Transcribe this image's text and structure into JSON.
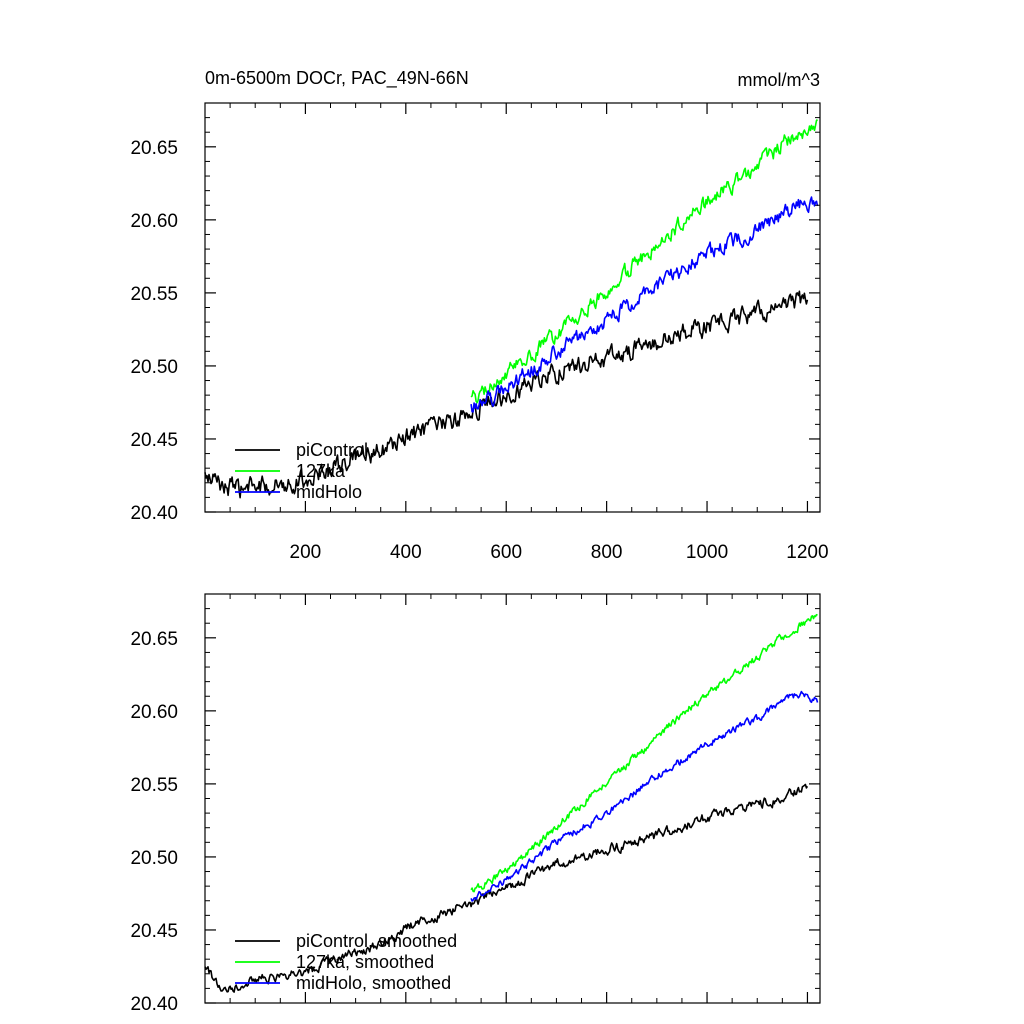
{
  "chart_data": [
    {
      "type": "line",
      "title": "0m-6500m DOCr, PAC_49N-66N",
      "units": "mmol/m^3",
      "xlim": [
        0,
        1225
      ],
      "ylim": [
        20.4,
        20.68
      ],
      "x_ticks": [
        200,
        400,
        600,
        800,
        1000,
        1200
      ],
      "x_tick_labels": [
        "200",
        "400",
        "600",
        "800",
        "1000",
        "1200"
      ],
      "y_ticks": [
        20.4,
        20.45,
        20.5,
        20.55,
        20.6,
        20.65
      ],
      "y_tick_labels": [
        "20.40",
        "20.45",
        "20.50",
        "20.55",
        "20.60",
        "20.65"
      ],
      "legend_position": "bottom-left",
      "series": [
        {
          "name": "piControl",
          "color": "#000000",
          "noise": 0.0055,
          "points": [
            [
              0,
              20.424
            ],
            [
              60,
              20.415
            ],
            [
              120,
              20.418
            ],
            [
              200,
              20.422
            ],
            [
              260,
              20.432
            ],
            [
              320,
              20.438
            ],
            [
              360,
              20.443
            ],
            [
              400,
              20.451
            ],
            [
              450,
              20.457
            ],
            [
              500,
              20.463
            ],
            [
              530,
              20.468
            ],
            [
              600,
              20.481
            ],
            [
              700,
              20.496
            ],
            [
              800,
              20.506
            ],
            [
              900,
              20.516
            ],
            [
              1000,
              20.527
            ],
            [
              1100,
              20.536
            ],
            [
              1150,
              20.541
            ],
            [
              1200,
              20.547
            ]
          ]
        },
        {
          "name": "127ka",
          "color": "#00ff00",
          "noise": 0.0045,
          "points": [
            [
              530,
              20.476
            ],
            [
              600,
              20.494
            ],
            [
              700,
              20.522
            ],
            [
              800,
              20.552
            ],
            [
              900,
              20.583
            ],
            [
              1000,
              20.612
            ],
            [
              1100,
              20.637
            ],
            [
              1150,
              20.652
            ],
            [
              1220,
              20.666
            ]
          ]
        },
        {
          "name": "midHolo",
          "color": "#0000ff",
          "noise": 0.0045,
          "points": [
            [
              530,
              20.471
            ],
            [
              600,
              20.485
            ],
            [
              700,
              20.51
            ],
            [
              800,
              20.532
            ],
            [
              900,
              20.555
            ],
            [
              1000,
              20.577
            ],
            [
              1100,
              20.593
            ],
            [
              1180,
              20.61
            ],
            [
              1220,
              20.608
            ]
          ]
        }
      ]
    },
    {
      "type": "line",
      "title": "",
      "xlim": [
        0,
        1225
      ],
      "ylim": [
        20.4,
        20.68
      ],
      "x_ticks": [
        200,
        400,
        600,
        800,
        1000,
        1200
      ],
      "x_tick_labels": [],
      "y_ticks": [
        20.4,
        20.45,
        20.5,
        20.55,
        20.6,
        20.65
      ],
      "y_tick_labels": [
        "20.40",
        "20.45",
        "20.50",
        "20.55",
        "20.60",
        "20.65"
      ],
      "legend_position": "bottom-left",
      "series": [
        {
          "name": "piControl, smoothed",
          "color": "#000000",
          "noise": 0.0028,
          "points": [
            [
              0,
              20.423
            ],
            [
              40,
              20.41
            ],
            [
              120,
              20.417
            ],
            [
              200,
              20.421
            ],
            [
              260,
              20.43
            ],
            [
              320,
              20.437
            ],
            [
              360,
              20.442
            ],
            [
              400,
              20.451
            ],
            [
              450,
              20.458
            ],
            [
              500,
              20.465
            ],
            [
              530,
              20.468
            ],
            [
              600,
              20.479
            ],
            [
              700,
              20.495
            ],
            [
              800,
              20.505
            ],
            [
              900,
              20.515
            ],
            [
              1000,
              20.527
            ],
            [
              1100,
              20.536
            ],
            [
              1150,
              20.54
            ],
            [
              1200,
              20.549
            ]
          ]
        },
        {
          "name": "127ka, smoothed",
          "color": "#00ff00",
          "noise": 0.0022,
          "points": [
            [
              530,
              20.476
            ],
            [
              600,
              20.49
            ],
            [
              700,
              20.521
            ],
            [
              800,
              20.551
            ],
            [
              900,
              20.582
            ],
            [
              1000,
              20.612
            ],
            [
              1100,
              20.636
            ],
            [
              1150,
              20.651
            ],
            [
              1220,
              20.666
            ]
          ]
        },
        {
          "name": "midHolo, smoothed",
          "color": "#0000ff",
          "noise": 0.0022,
          "points": [
            [
              530,
              20.47
            ],
            [
              600,
              20.484
            ],
            [
              700,
              20.51
            ],
            [
              800,
              20.53
            ],
            [
              900,
              20.555
            ],
            [
              1000,
              20.578
            ],
            [
              1100,
              20.595
            ],
            [
              1180,
              20.612
            ],
            [
              1220,
              20.607
            ]
          ]
        }
      ]
    }
  ]
}
